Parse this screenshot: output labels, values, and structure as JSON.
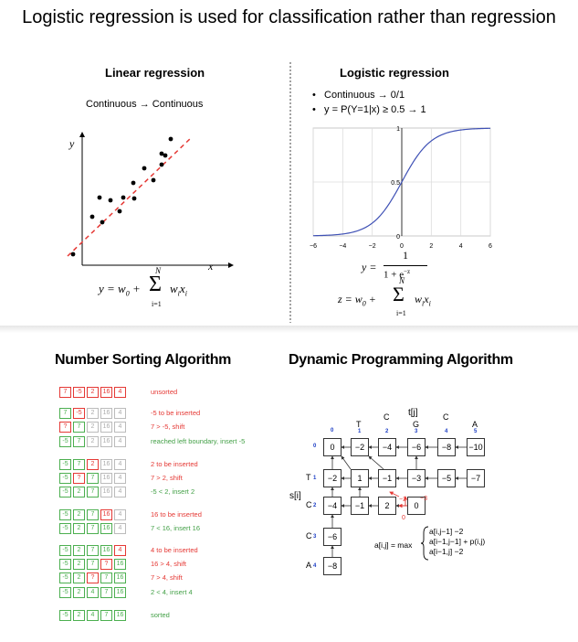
{
  "title": "Logistic regression is used for classification rather than regression",
  "linear": {
    "heading": "Linear regression",
    "caption": "Continuous → Continuous",
    "axis_x": "x",
    "axis_y": "y",
    "formula_lhs": "y = w",
    "formula_sub0": "0",
    "formula_plus": "+",
    "formula_sigma": "Σ",
    "formula_top": "N",
    "formula_bottom": "i=1",
    "formula_term": "w",
    "formula_term_sub": "i",
    "formula_term_x": "x",
    "formula_term_x_sub": "i"
  },
  "logistic": {
    "heading": "Logistic regression",
    "bullet1": "Continuous → 0/1",
    "bullet2": "y = P(Y=1|x)  ≥  0.5 → 1",
    "sigmoid_lhs": "y =",
    "sigmoid_num": "1",
    "sigmoid_den": "1 + e",
    "sigmoid_exp": "−z",
    "z_lhs": "z = w",
    "z_sub0": "0",
    "z_plus": "+",
    "z_top": "N",
    "z_bottom": "i=1",
    "z_term": "w",
    "z_term_x": "x",
    "y_ticks": [
      "1",
      "0.5",
      "0"
    ],
    "x_ticks": [
      "−6",
      "−4",
      "−2",
      "0",
      "2",
      "4",
      "6"
    ]
  },
  "sorting": {
    "heading": "Number Sorting Algorithm",
    "rows": [
      {
        "cells": [
          [
            "7",
            "r"
          ],
          [
            "-5",
            "r"
          ],
          [
            "2",
            "r"
          ],
          [
            "16",
            "r"
          ],
          [
            "4",
            "r"
          ]
        ],
        "note": "unsorted",
        "color": "red"
      },
      {
        "cells": [
          [
            "7",
            "g"
          ],
          [
            "-5",
            "r"
          ],
          [
            "2",
            "s"
          ],
          [
            "16",
            "s"
          ],
          [
            "4",
            "s"
          ]
        ],
        "note": "-5 to be inserted",
        "color": "red"
      },
      {
        "cells": [
          [
            "?",
            "r"
          ],
          [
            "7",
            "g"
          ],
          [
            "2",
            "s"
          ],
          [
            "16",
            "s"
          ],
          [
            "4",
            "s"
          ]
        ],
        "note": "7 > -5, shift",
        "color": "red"
      },
      {
        "cells": [
          [
            "-5",
            "g"
          ],
          [
            "7",
            "g"
          ],
          [
            "2",
            "s"
          ],
          [
            "16",
            "s"
          ],
          [
            "4",
            "s"
          ]
        ],
        "note": "reached left boundary, insert -5",
        "color": "green"
      },
      {
        "cells": [
          [
            "-5",
            "g"
          ],
          [
            "7",
            "g"
          ],
          [
            "2",
            "r"
          ],
          [
            "16",
            "s"
          ],
          [
            "4",
            "s"
          ]
        ],
        "note": "2 to be inserted",
        "color": "red"
      },
      {
        "cells": [
          [
            "-5",
            "g"
          ],
          [
            "?",
            "r"
          ],
          [
            "7",
            "g"
          ],
          [
            "16",
            "s"
          ],
          [
            "4",
            "s"
          ]
        ],
        "note": "7 > 2, shift",
        "color": "red"
      },
      {
        "cells": [
          [
            "-5",
            "g"
          ],
          [
            "2",
            "g"
          ],
          [
            "7",
            "g"
          ],
          [
            "16",
            "s"
          ],
          [
            "4",
            "s"
          ]
        ],
        "note": "-5 < 2, insert 2",
        "color": "green"
      },
      {
        "cells": [
          [
            "-5",
            "g"
          ],
          [
            "2",
            "g"
          ],
          [
            "7",
            "g"
          ],
          [
            "16",
            "r"
          ],
          [
            "4",
            "s"
          ]
        ],
        "note": "16 to be inserted",
        "color": "red"
      },
      {
        "cells": [
          [
            "-5",
            "g"
          ],
          [
            "2",
            "g"
          ],
          [
            "7",
            "g"
          ],
          [
            "16",
            "g"
          ],
          [
            "4",
            "s"
          ]
        ],
        "note": "7 < 16, insert 16",
        "color": "green"
      },
      {
        "cells": [
          [
            "-5",
            "g"
          ],
          [
            "2",
            "g"
          ],
          [
            "7",
            "g"
          ],
          [
            "16",
            "g"
          ],
          [
            "4",
            "r"
          ]
        ],
        "note": "4 to be inserted",
        "color": "red"
      },
      {
        "cells": [
          [
            "-5",
            "g"
          ],
          [
            "2",
            "g"
          ],
          [
            "7",
            "g"
          ],
          [
            "?",
            "r"
          ],
          [
            "16",
            "g"
          ]
        ],
        "note": "16 > 4, shift",
        "color": "red"
      },
      {
        "cells": [
          [
            "-5",
            "g"
          ],
          [
            "2",
            "g"
          ],
          [
            "?",
            "r"
          ],
          [
            "7",
            "g"
          ],
          [
            "16",
            "g"
          ]
        ],
        "note": "7 > 4, shift",
        "color": "red"
      },
      {
        "cells": [
          [
            "-5",
            "g"
          ],
          [
            "2",
            "g"
          ],
          [
            "4",
            "g"
          ],
          [
            "7",
            "g"
          ],
          [
            "16",
            "g"
          ]
        ],
        "note": "2 < 4, insert 4",
        "color": "green"
      },
      {
        "cells": [
          [
            "-5",
            "g"
          ],
          [
            "2",
            "g"
          ],
          [
            "4",
            "g"
          ],
          [
            "7",
            "g"
          ],
          [
            "16",
            "g"
          ]
        ],
        "note": "sorted",
        "color": "green"
      }
    ]
  },
  "dp": {
    "heading": "Dynamic Programming Algorithm",
    "t_label": "t[j]",
    "s_label": "s[i]",
    "cols": [
      "T",
      "C",
      "G",
      "C",
      "A"
    ],
    "col_idx": [
      "0",
      "1",
      "2",
      "3",
      "4",
      "5"
    ],
    "rows": [
      "T",
      "C",
      "C",
      "A"
    ],
    "row_idx": [
      "0",
      "1",
      "2",
      "3",
      "4"
    ],
    "row0": [
      "0",
      "−2",
      "−4",
      "−6",
      "−8",
      "−10"
    ],
    "row1": [
      "−2",
      "1",
      "−1",
      "−3",
      "−5",
      "−7"
    ],
    "row2": [
      "−4",
      "−1",
      "2",
      "0"
    ],
    "row3": [
      "−6"
    ],
    "row4": [
      "−8"
    ],
    "red_labels": [
      "−2",
      "−3",
      "0"
    ],
    "rec_lhs": "a[i,j] = max",
    "rec1": "a[i,j−1] −2",
    "rec2": "a[i−1,j−1] + p(i,j)",
    "rec3": "a[i−1,j] −2"
  }
}
